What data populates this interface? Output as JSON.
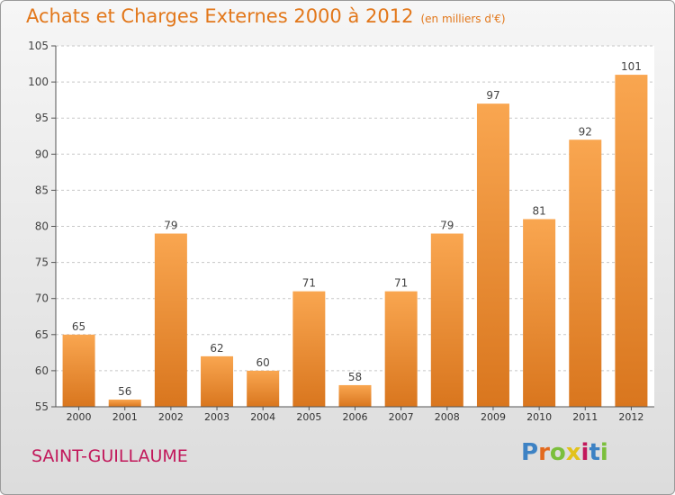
{
  "title": "Achats et Charges Externes 2000 à 2012",
  "subtitle": "(en milliers d'€)",
  "town": "SAINT-GUILLAUME",
  "brand": {
    "letters": [
      "P",
      "r",
      "o",
      "x",
      "i",
      "t",
      "i"
    ],
    "colors": [
      "#3d82c4",
      "#e36a1e",
      "#7bbf3c",
      "#e2c21a",
      "#c2185b",
      "#3d82c4",
      "#7bbf3c"
    ]
  },
  "colors": {
    "bar_light": "#f9a650",
    "bar_dark": "#d9761e",
    "title": "#e2771a",
    "town": "#c2185b"
  },
  "chart_data": {
    "type": "bar",
    "title": "Achats et Charges Externes 2000 à 2012",
    "subtitle": "(en milliers d'€)",
    "categories": [
      "2000",
      "2001",
      "2002",
      "2003",
      "2004",
      "2005",
      "2006",
      "2007",
      "2008",
      "2009",
      "2010",
      "2011",
      "2012"
    ],
    "values": [
      65,
      56,
      79,
      62,
      60,
      71,
      58,
      71,
      79,
      97,
      81,
      92,
      101
    ],
    "ylim": [
      55,
      105
    ],
    "yticks": [
      55,
      60,
      65,
      70,
      75,
      80,
      85,
      90,
      95,
      100,
      105
    ],
    "grid": true,
    "data_labels": true
  }
}
